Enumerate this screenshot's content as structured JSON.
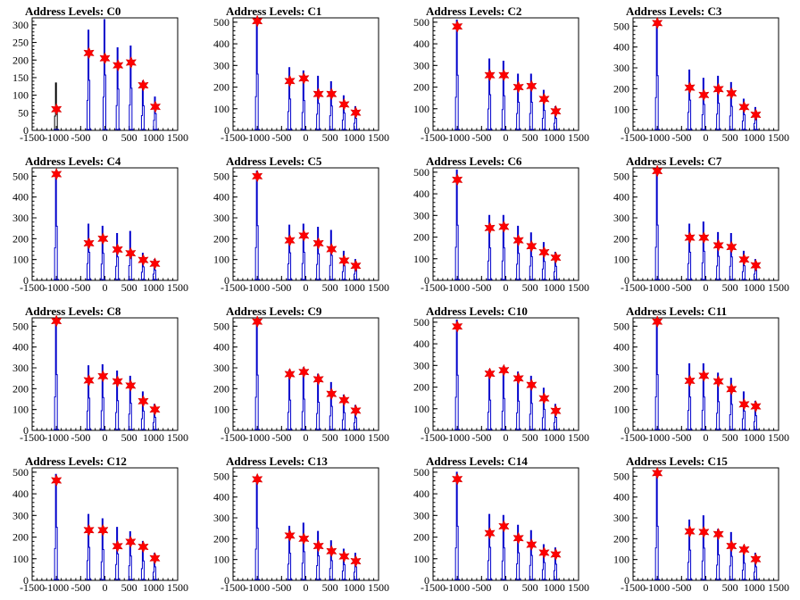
{
  "chart_data": [
    {
      "type": "histogram",
      "title": "Address Levels: C0",
      "xlim": [
        -1500,
        1500
      ],
      "ylim": [
        0,
        320
      ],
      "yticks": [
        0,
        50,
        100,
        150,
        200,
        250,
        300
      ],
      "xticks": [
        "-1500",
        "-1000",
        "-500",
        "0",
        "500",
        "1000",
        "1500"
      ],
      "peaks": [
        {
          "x": -1000,
          "y": 60,
          "h": 135
        },
        {
          "x": -330,
          "y": 220,
          "h": 285
        },
        {
          "x": 0,
          "y": 205,
          "h": 315
        },
        {
          "x": 270,
          "y": 185,
          "h": 235
        },
        {
          "x": 540,
          "y": 193,
          "h": 240
        },
        {
          "x": 790,
          "y": 128,
          "h": 140
        },
        {
          "x": 1040,
          "y": 67,
          "h": 95
        }
      ]
    },
    {
      "type": "histogram",
      "title": "Address Levels: C1",
      "xlim": [
        -1500,
        1500
      ],
      "ylim": [
        0,
        520
      ],
      "yticks": [
        0,
        100,
        200,
        300,
        400,
        500
      ],
      "xticks": [
        "-1500",
        "-1000",
        "-500",
        "0",
        "500",
        "1000",
        "1500"
      ],
      "peaks": [
        {
          "x": -1000,
          "y": 505,
          "h": 520
        },
        {
          "x": -330,
          "y": 228,
          "h": 290
        },
        {
          "x": -40,
          "y": 240,
          "h": 275
        },
        {
          "x": 260,
          "y": 168,
          "h": 250
        },
        {
          "x": 530,
          "y": 168,
          "h": 225
        },
        {
          "x": 790,
          "y": 120,
          "h": 160
        },
        {
          "x": 1030,
          "y": 82,
          "h": 110
        }
      ]
    },
    {
      "type": "histogram",
      "title": "Address Levels: C2",
      "xlim": [
        -1500,
        1500
      ],
      "ylim": [
        0,
        520
      ],
      "yticks": [
        0,
        100,
        200,
        300,
        400,
        500
      ],
      "xticks": [
        "-1500",
        "-1000",
        "-500",
        "0",
        "500",
        "1000",
        "1500"
      ],
      "peaks": [
        {
          "x": -1000,
          "y": 480,
          "h": 510
        },
        {
          "x": -330,
          "y": 255,
          "h": 330
        },
        {
          "x": -40,
          "y": 255,
          "h": 320
        },
        {
          "x": 260,
          "y": 200,
          "h": 260
        },
        {
          "x": 530,
          "y": 205,
          "h": 260
        },
        {
          "x": 790,
          "y": 145,
          "h": 185
        },
        {
          "x": 1030,
          "y": 88,
          "h": 110
        }
      ]
    },
    {
      "type": "histogram",
      "title": "Address Levels: C3",
      "xlim": [
        -1500,
        1500
      ],
      "ylim": [
        0,
        540
      ],
      "yticks": [
        0,
        100,
        200,
        300,
        400,
        500
      ],
      "xticks": [
        "-1500",
        "-1000",
        "-500",
        "0",
        "500",
        "1000",
        "1500"
      ],
      "peaks": [
        {
          "x": -1000,
          "y": 515,
          "h": 525
        },
        {
          "x": -330,
          "y": 205,
          "h": 290
        },
        {
          "x": -40,
          "y": 170,
          "h": 250
        },
        {
          "x": 260,
          "y": 198,
          "h": 260
        },
        {
          "x": 530,
          "y": 178,
          "h": 230
        },
        {
          "x": 790,
          "y": 112,
          "h": 150
        },
        {
          "x": 1030,
          "y": 75,
          "h": 110
        }
      ]
    },
    {
      "type": "histogram",
      "title": "Address Levels: C4",
      "xlim": [
        -1500,
        1500
      ],
      "ylim": [
        0,
        540
      ],
      "yticks": [
        0,
        100,
        200,
        300,
        400,
        500
      ],
      "xticks": [
        "-1500",
        "-1000",
        "-500",
        "0",
        "500",
        "1000",
        "1500"
      ],
      "peaks": [
        {
          "x": -1000,
          "y": 510,
          "h": 520
        },
        {
          "x": -330,
          "y": 178,
          "h": 270
        },
        {
          "x": -40,
          "y": 200,
          "h": 260
        },
        {
          "x": 260,
          "y": 148,
          "h": 225
        },
        {
          "x": 530,
          "y": 130,
          "h": 235
        },
        {
          "x": 790,
          "y": 98,
          "h": 130
        },
        {
          "x": 1030,
          "y": 80,
          "h": 100
        }
      ]
    },
    {
      "type": "histogram",
      "title": "Address Levels: C5",
      "xlim": [
        -1500,
        1500
      ],
      "ylim": [
        0,
        540
      ],
      "yticks": [
        0,
        100,
        200,
        300,
        400,
        500
      ],
      "xticks": [
        "-1500",
        "-1000",
        "-500",
        "0",
        "500",
        "1000",
        "1500"
      ],
      "peaks": [
        {
          "x": -1000,
          "y": 500,
          "h": 525
        },
        {
          "x": -330,
          "y": 192,
          "h": 265
        },
        {
          "x": -40,
          "y": 215,
          "h": 270
        },
        {
          "x": 260,
          "y": 178,
          "h": 255
        },
        {
          "x": 530,
          "y": 150,
          "h": 240
        },
        {
          "x": 790,
          "y": 95,
          "h": 140
        },
        {
          "x": 1030,
          "y": 70,
          "h": 100
        }
      ]
    },
    {
      "type": "histogram",
      "title": "Address Levels: C6",
      "xlim": [
        -1500,
        1500
      ],
      "ylim": [
        0,
        520
      ],
      "yticks": [
        0,
        100,
        200,
        300,
        400,
        500
      ],
      "xticks": [
        "-1500",
        "-1000",
        "-500",
        "0",
        "500",
        "1000",
        "1500"
      ],
      "peaks": [
        {
          "x": -1000,
          "y": 465,
          "h": 510
        },
        {
          "x": -330,
          "y": 242,
          "h": 300
        },
        {
          "x": -40,
          "y": 248,
          "h": 300
        },
        {
          "x": 260,
          "y": 185,
          "h": 250
        },
        {
          "x": 530,
          "y": 158,
          "h": 220
        },
        {
          "x": 790,
          "y": 130,
          "h": 175
        },
        {
          "x": 1030,
          "y": 105,
          "h": 130
        }
      ]
    },
    {
      "type": "histogram",
      "title": "Address Levels: C7",
      "xlim": [
        -1500,
        1500
      ],
      "ylim": [
        0,
        540
      ],
      "yticks": [
        0,
        100,
        200,
        300,
        400,
        500
      ],
      "xticks": [
        "-1500",
        "-1000",
        "-500",
        "0",
        "500",
        "1000",
        "1500"
      ],
      "peaks": [
        {
          "x": -1000,
          "y": 525,
          "h": 530
        },
        {
          "x": -330,
          "y": 205,
          "h": 270
        },
        {
          "x": -40,
          "y": 205,
          "h": 280
        },
        {
          "x": 260,
          "y": 168,
          "h": 230
        },
        {
          "x": 530,
          "y": 160,
          "h": 225
        },
        {
          "x": 790,
          "y": 100,
          "h": 140
        },
        {
          "x": 1030,
          "y": 72,
          "h": 100
        }
      ]
    },
    {
      "type": "histogram",
      "title": "Address Levels: C8",
      "xlim": [
        -1500,
        1500
      ],
      "ylim": [
        0,
        540
      ],
      "yticks": [
        0,
        100,
        200,
        300,
        400,
        500
      ],
      "xticks": [
        "-1500",
        "-1000",
        "-500",
        "0",
        "500",
        "1000",
        "1500"
      ],
      "peaks": [
        {
          "x": -1000,
          "y": 525,
          "h": 535
        },
        {
          "x": -330,
          "y": 240,
          "h": 310
        },
        {
          "x": -40,
          "y": 260,
          "h": 315
        },
        {
          "x": 260,
          "y": 235,
          "h": 285
        },
        {
          "x": 530,
          "y": 215,
          "h": 260
        },
        {
          "x": 790,
          "y": 140,
          "h": 185
        },
        {
          "x": 1030,
          "y": 100,
          "h": 125
        }
      ]
    },
    {
      "type": "histogram",
      "title": "Address Levels: C9",
      "xlim": [
        -1500,
        1500
      ],
      "ylim": [
        0,
        540
      ],
      "yticks": [
        0,
        100,
        200,
        300,
        400,
        500
      ],
      "xticks": [
        "-1500",
        "-1000",
        "-500",
        "0",
        "500",
        "1000",
        "1500"
      ],
      "peaks": [
        {
          "x": -1000,
          "y": 522,
          "h": 530
        },
        {
          "x": -330,
          "y": 270,
          "h": 290
        },
        {
          "x": -40,
          "y": 280,
          "h": 300
        },
        {
          "x": 260,
          "y": 245,
          "h": 270
        },
        {
          "x": 530,
          "y": 175,
          "h": 230
        },
        {
          "x": 790,
          "y": 145,
          "h": 170
        },
        {
          "x": 1030,
          "y": 95,
          "h": 120
        }
      ]
    },
    {
      "type": "histogram",
      "title": "Address Levels: C10",
      "xlim": [
        -1500,
        1500
      ],
      "ylim": [
        0,
        520
      ],
      "yticks": [
        0,
        100,
        200,
        300,
        400,
        500
      ],
      "xticks": [
        "-1500",
        "-1000",
        "-500",
        "0",
        "500",
        "1000",
        "1500"
      ],
      "peaks": [
        {
          "x": -1000,
          "y": 480,
          "h": 510
        },
        {
          "x": -330,
          "y": 262,
          "h": 280
        },
        {
          "x": -40,
          "y": 278,
          "h": 295
        },
        {
          "x": 260,
          "y": 240,
          "h": 270
        },
        {
          "x": 530,
          "y": 210,
          "h": 250
        },
        {
          "x": 790,
          "y": 148,
          "h": 195
        },
        {
          "x": 1030,
          "y": 90,
          "h": 120
        }
      ]
    },
    {
      "type": "histogram",
      "title": "Address Levels: C11",
      "xlim": [
        -1500,
        1500
      ],
      "ylim": [
        0,
        540
      ],
      "yticks": [
        0,
        100,
        200,
        300,
        400,
        500
      ],
      "xticks": [
        "-1500",
        "-1000",
        "-500",
        "0",
        "500",
        "1000",
        "1500"
      ],
      "peaks": [
        {
          "x": -1000,
          "y": 522,
          "h": 535
        },
        {
          "x": -330,
          "y": 238,
          "h": 320
        },
        {
          "x": -40,
          "y": 262,
          "h": 320
        },
        {
          "x": 260,
          "y": 235,
          "h": 275
        },
        {
          "x": 530,
          "y": 198,
          "h": 250
        },
        {
          "x": 790,
          "y": 125,
          "h": 185
        },
        {
          "x": 1030,
          "y": 115,
          "h": 140
        }
      ]
    },
    {
      "type": "histogram",
      "title": "Address Levels: C12",
      "xlim": [
        -1500,
        1500
      ],
      "ylim": [
        0,
        520
      ],
      "yticks": [
        0,
        100,
        200,
        300,
        400,
        500
      ],
      "xticks": [
        "-1500",
        "-1000",
        "-500",
        "0",
        "500",
        "1000",
        "1500"
      ],
      "peaks": [
        {
          "x": -1000,
          "y": 462,
          "h": 490
        },
        {
          "x": -330,
          "y": 232,
          "h": 305
        },
        {
          "x": -40,
          "y": 232,
          "h": 285
        },
        {
          "x": 260,
          "y": 158,
          "h": 245
        },
        {
          "x": 530,
          "y": 178,
          "h": 225
        },
        {
          "x": 790,
          "y": 155,
          "h": 180
        },
        {
          "x": 1030,
          "y": 102,
          "h": 125
        }
      ]
    },
    {
      "type": "histogram",
      "title": "Address Levels: C13",
      "xlim": [
        -1500,
        1500
      ],
      "ylim": [
        0,
        540
      ],
      "yticks": [
        0,
        100,
        200,
        300,
        400,
        500
      ],
      "xticks": [
        "-1500",
        "-1000",
        "-500",
        "0",
        "500",
        "1000",
        "1500"
      ],
      "peaks": [
        {
          "x": -1000,
          "y": 485,
          "h": 500
        },
        {
          "x": -330,
          "y": 215,
          "h": 260
        },
        {
          "x": -40,
          "y": 200,
          "h": 275
        },
        {
          "x": 260,
          "y": 165,
          "h": 235
        },
        {
          "x": 530,
          "y": 140,
          "h": 190
        },
        {
          "x": 790,
          "y": 115,
          "h": 150
        },
        {
          "x": 1030,
          "y": 92,
          "h": 130
        }
      ]
    },
    {
      "type": "histogram",
      "title": "Address Levels: C14",
      "xlim": [
        -1500,
        1500
      ],
      "ylim": [
        0,
        520
      ],
      "yticks": [
        0,
        100,
        200,
        300,
        400,
        500
      ],
      "xticks": [
        "-1500",
        "-1000",
        "-500",
        "0",
        "500",
        "1000",
        "1500"
      ],
      "peaks": [
        {
          "x": -1000,
          "y": 468,
          "h": 500
        },
        {
          "x": -330,
          "y": 218,
          "h": 305
        },
        {
          "x": -40,
          "y": 250,
          "h": 300
        },
        {
          "x": 260,
          "y": 195,
          "h": 255
        },
        {
          "x": 530,
          "y": 165,
          "h": 230
        },
        {
          "x": 790,
          "y": 128,
          "h": 165
        },
        {
          "x": 1030,
          "y": 120,
          "h": 150
        }
      ]
    },
    {
      "type": "histogram",
      "title": "Address Levels: C15",
      "xlim": [
        -1500,
        1500
      ],
      "ylim": [
        0,
        540
      ],
      "yticks": [
        0,
        100,
        200,
        300,
        400,
        500
      ],
      "xticks": [
        "-1500",
        "-1000",
        "-500",
        "0",
        "500",
        "1000",
        "1500"
      ],
      "peaks": [
        {
          "x": -1000,
          "y": 515,
          "h": 520
        },
        {
          "x": -330,
          "y": 235,
          "h": 290
        },
        {
          "x": -40,
          "y": 232,
          "h": 310
        },
        {
          "x": 260,
          "y": 222,
          "h": 245
        },
        {
          "x": 530,
          "y": 165,
          "h": 230
        },
        {
          "x": 790,
          "y": 148,
          "h": 165
        },
        {
          "x": 1030,
          "y": 102,
          "h": 130
        }
      ]
    }
  ],
  "colors": {
    "histogram": "#0000cc",
    "marker": "#ff0000",
    "frame": "#000000"
  }
}
